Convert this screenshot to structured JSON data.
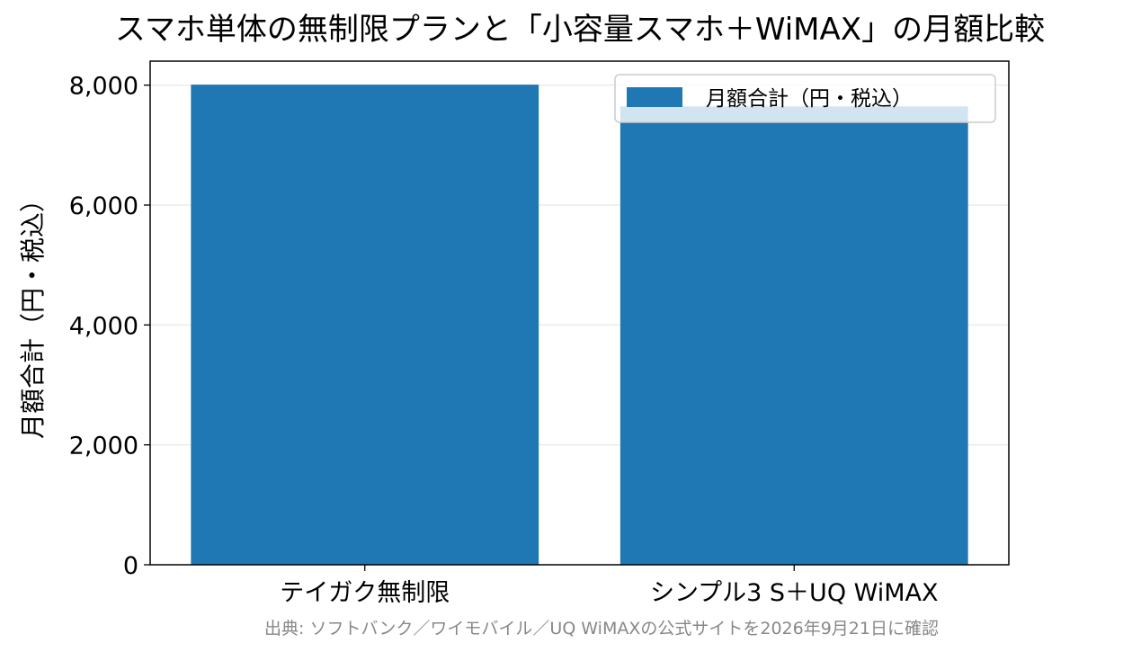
{
  "chart_data": {
    "type": "bar",
    "title": "スマホ単体の無制限プランと「小容量スマホ＋WiMAX」の月額比較",
    "categories": [
      "テイガク無制限",
      "シンプル3 S＋UQ WiMAX"
    ],
    "series": [
      {
        "name": "月額合計（円・税込）",
        "values": [
          8008,
          7645
        ],
        "color": "#1f77b4"
      }
    ],
    "ylabel": "月額合計（円・税込）",
    "xlabel": "",
    "ylim": [
      0,
      8400
    ],
    "yticks": [
      0,
      2000,
      4000,
      6000,
      8000
    ],
    "ytick_labels": [
      "0",
      "2,000",
      "4,000",
      "6,000",
      "8,000"
    ],
    "grid": "y",
    "legend": "top-right",
    "source_note": "出典: ソフトバンク／ワイモバイル／UQ WiMAXの公式サイトを2026年9月21日に確認"
  }
}
